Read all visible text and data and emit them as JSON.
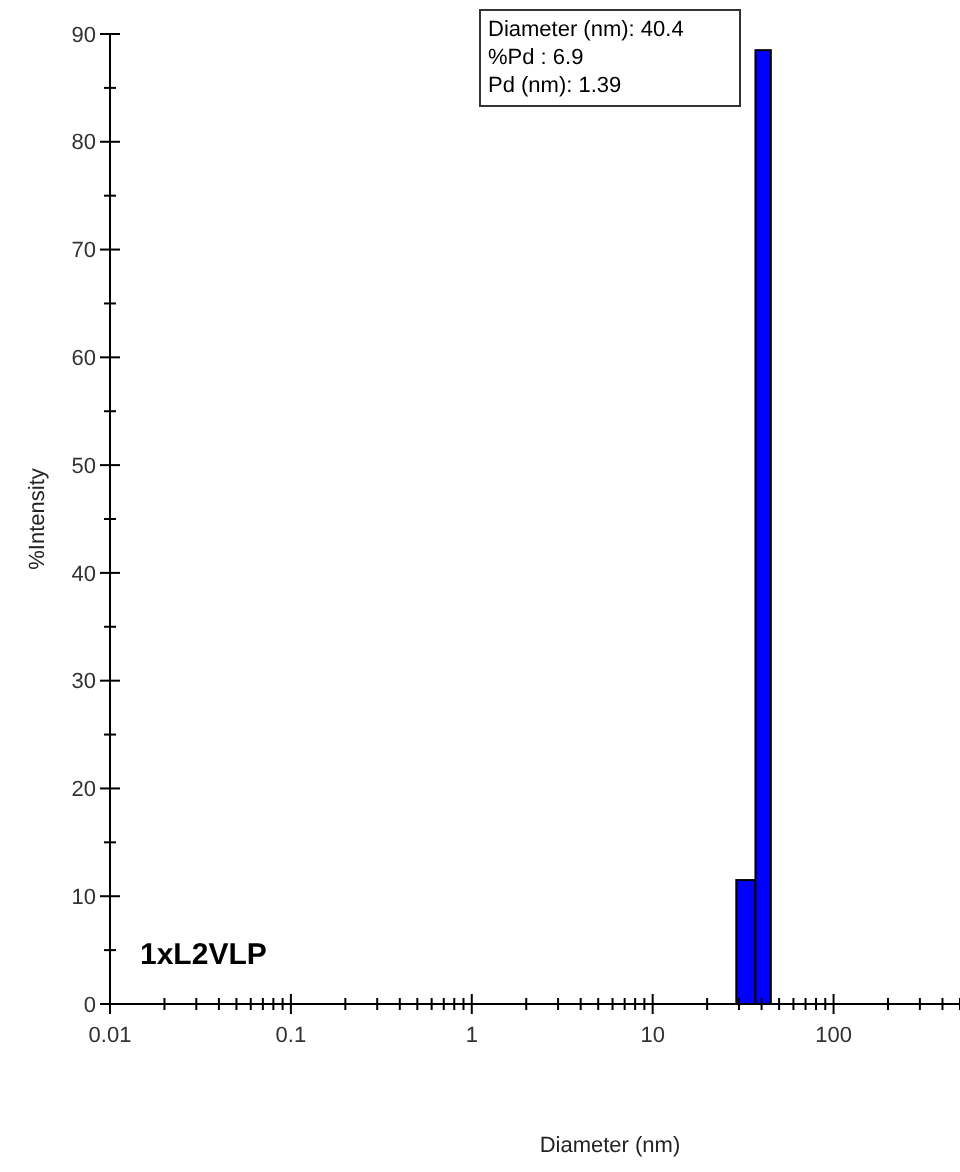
{
  "chart_data": {
    "type": "histogram",
    "xlabel": "Diameter (nm)",
    "ylabel": "%Intensity",
    "bins": [
      29,
      37,
      45
    ],
    "values": [
      11.5,
      88.5
    ],
    "color": "#0000ff",
    "log": "x",
    "xlim": [
      0.01,
      500
    ],
    "ylim": [
      0,
      90
    ],
    "xticks": [
      0.01,
      {
        "value": 0.02,
        "label": null
      },
      {
        "value": 0.03,
        "label": null
      },
      {
        "value": 0.04,
        "label": null
      },
      {
        "value": 0.05,
        "label": null
      },
      {
        "value": 0.06,
        "label": null
      },
      {
        "value": 0.07,
        "label": null
      },
      {
        "value": 0.08,
        "label": null
      },
      {
        "value": 0.09,
        "label": null
      },
      0.1,
      {
        "value": 0.2,
        "label": null
      },
      {
        "value": 0.3,
        "label": null
      },
      {
        "value": 0.4,
        "label": null
      },
      {
        "value": 0.5,
        "label": null
      },
      {
        "value": 0.6,
        "label": null
      },
      {
        "value": 0.7,
        "label": null
      },
      {
        "value": 0.8,
        "label": null
      },
      {
        "value": 0.9,
        "label": null
      },
      1,
      {
        "value": 2,
        "label": null
      },
      {
        "value": 3,
        "label": null
      },
      {
        "value": 4,
        "label": null
      },
      {
        "value": 5,
        "label": null
      },
      {
        "value": 6,
        "label": null
      },
      {
        "value": 7,
        "label": null
      },
      {
        "value": 8,
        "label": null
      },
      {
        "value": 9,
        "label": null
      },
      10,
      {
        "value": 20,
        "label": null
      },
      {
        "value": 30,
        "label": null
      },
      {
        "value": 40,
        "label": null
      },
      {
        "value": 50,
        "label": null
      },
      {
        "value": 60,
        "label": null
      },
      {
        "value": 70,
        "label": null
      },
      {
        "value": 80,
        "label": null
      },
      {
        "value": 90,
        "label": null
      },
      100,
      {
        "value": 200,
        "label": null
      },
      {
        "value": 300,
        "label": null
      },
      {
        "value": 400,
        "label": null
      },
      {
        "value": 500,
        "label": null
      }
    ],
    "yticks": [
      0,
      {
        "value": 5,
        "label": null
      },
      10,
      {
        "value": 15,
        "label": null
      },
      20,
      {
        "value": 25,
        "label": null
      },
      30,
      {
        "value": 35,
        "label": null
      },
      40,
      {
        "value": 45,
        "label": null
      },
      50,
      {
        "value": 55,
        "label": null
      },
      60,
      {
        "value": 65,
        "label": null
      },
      70,
      {
        "value": 75,
        "label": null
      },
      80,
      {
        "value": 85,
        "label": null
      },
      90
    ],
    "annotations": [
      "Diameter (nm): 40.4",
      "%Pd : 6.9",
      "Pd (nm): 1.39",
      "1xL2VLP"
    ]
  }
}
